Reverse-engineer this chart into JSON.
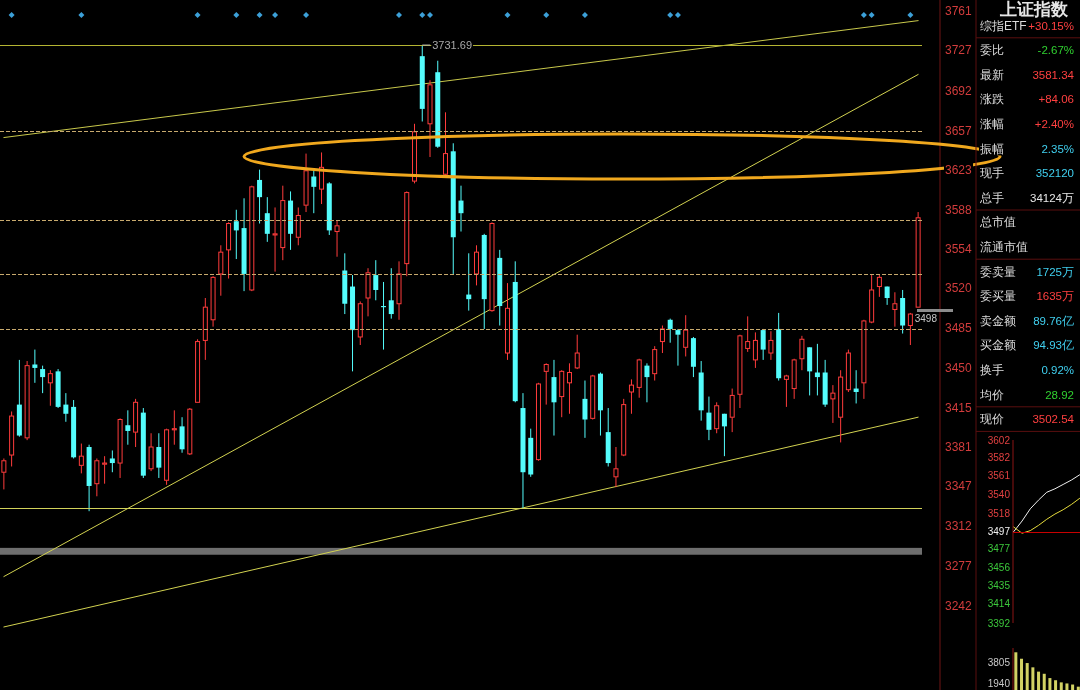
{
  "chart_data": [
    {
      "type": "candlestick",
      "categories": [
        null,
        null,
        null,
        null,
        null,
        null,
        null,
        null,
        null,
        null,
        null,
        null,
        null,
        null,
        null,
        null,
        null,
        null,
        null,
        null,
        null,
        null,
        null,
        null,
        null,
        null,
        null,
        null,
        null,
        null,
        null,
        null,
        null,
        null,
        null,
        null,
        null,
        null,
        null,
        null,
        null,
        null,
        null,
        null,
        null,
        null,
        null,
        null,
        null,
        null,
        null,
        null,
        null,
        null,
        null,
        null,
        null,
        null,
        null,
        null,
        null,
        null,
        null,
        null,
        null,
        null,
        null,
        null,
        null,
        null,
        null,
        null,
        null,
        null,
        null,
        null,
        null,
        null,
        null,
        null,
        null,
        null,
        null,
        null,
        null,
        null,
        null,
        null,
        null,
        null,
        null,
        null,
        null,
        null,
        null,
        null,
        null,
        null,
        null,
        null,
        null,
        null,
        null,
        null,
        null,
        null,
        null,
        null,
        null,
        null,
        null,
        null,
        null,
        null,
        null,
        null,
        null,
        null,
        null
      ],
      "ohlc": [
        [
          3359,
          3371,
          3344,
          3369
        ],
        [
          3374,
          3412,
          3364,
          3408
        ],
        [
          3418,
          3457,
          3390,
          3391
        ],
        [
          3389,
          3456,
          3387,
          3452
        ],
        [
          3453,
          3466,
          3437,
          3450
        ],
        [
          3449,
          3452,
          3428,
          3442
        ],
        [
          3437,
          3448,
          3417,
          3445
        ],
        [
          3447,
          3449,
          3415,
          3416
        ],
        [
          3418,
          3428,
          3403,
          3410
        ],
        [
          3416,
          3422,
          3371,
          3372
        ],
        [
          3365,
          3384,
          3358,
          3373
        ],
        [
          3381,
          3383,
          3325,
          3347
        ],
        [
          3349,
          3371,
          3338,
          3369
        ],
        [
          3366,
          3373,
          3349,
          3367
        ],
        [
          3371,
          3378,
          3359,
          3367
        ],
        [
          3367,
          3406,
          3354,
          3405
        ],
        [
          3400,
          3413,
          3383,
          3395
        ],
        [
          3394,
          3423,
          3381,
          3420
        ],
        [
          3411,
          3415,
          3354,
          3356
        ],
        [
          3362,
          3393,
          3360,
          3381
        ],
        [
          3381,
          3393,
          3354,
          3363
        ],
        [
          3352,
          3397,
          3348,
          3396
        ],
        [
          3396,
          3413,
          3383,
          3397
        ],
        [
          3399,
          3407,
          3376,
          3379
        ],
        [
          3375,
          3415,
          3374,
          3414
        ],
        [
          3420,
          3475,
          3420,
          3473
        ],
        [
          3474,
          3511,
          3457,
          3503
        ],
        [
          3492,
          3530,
          3486,
          3529
        ],
        [
          3532,
          3557,
          3513,
          3551
        ],
        [
          3553,
          3577,
          3528,
          3576
        ],
        [
          3578,
          3588,
          3545,
          3570
        ],
        [
          3572,
          3598,
          3517,
          3532
        ],
        [
          3518,
          3609,
          3517,
          3608
        ],
        [
          3614,
          3623,
          3576,
          3599
        ],
        [
          3585,
          3599,
          3560,
          3567
        ],
        [
          3566,
          3590,
          3534,
          3567
        ],
        [
          3555,
          3609,
          3544,
          3596
        ],
        [
          3596,
          3604,
          3553,
          3567
        ],
        [
          3564,
          3590,
          3557,
          3583
        ],
        [
          3592,
          3637,
          3586,
          3622
        ],
        [
          3617,
          3622,
          3585,
          3608
        ],
        [
          3606,
          3638,
          3593,
          3625
        ],
        [
          3611,
          3612,
          3566,
          3570
        ],
        [
          3569,
          3579,
          3547,
          3574
        ],
        [
          3535,
          3550,
          3497,
          3506
        ],
        [
          3521,
          3531,
          3447,
          3483
        ],
        [
          3477,
          3508,
          3470,
          3506
        ],
        [
          3511,
          3537,
          3495,
          3533
        ],
        [
          3531,
          3544,
          3509,
          3518
        ],
        [
          3504,
          3525,
          3466,
          3503
        ],
        [
          3509,
          3537,
          3493,
          3497
        ],
        [
          3506,
          3543,
          3492,
          3532
        ],
        [
          3541,
          3604,
          3530,
          3603
        ],
        [
          3613,
          3663,
          3611,
          3656
        ],
        [
          3722,
          3731.69,
          3665,
          3676
        ],
        [
          3663,
          3701,
          3634,
          3697
        ],
        [
          3708,
          3718,
          3642,
          3643
        ],
        [
          3619,
          3673,
          3618,
          3637
        ],
        [
          3639,
          3646,
          3532,
          3564
        ],
        [
          3596,
          3609,
          3569,
          3585
        ],
        [
          3514,
          3550,
          3500,
          3510
        ],
        [
          3532,
          3557,
          3522,
          3551
        ],
        [
          3566,
          3567,
          3484,
          3510
        ],
        [
          3500,
          3577,
          3499,
          3576
        ],
        [
          3546,
          3553,
          3487,
          3504
        ],
        [
          3463,
          3524,
          3457,
          3502
        ],
        [
          3525,
          3543,
          3420,
          3421
        ],
        [
          3415,
          3428,
          3327,
          3359
        ],
        [
          3389,
          3397,
          3355,
          3357
        ],
        [
          3370,
          3437,
          3369,
          3436
        ],
        [
          3447,
          3454,
          3418,
          3453
        ],
        [
          3442,
          3457,
          3391,
          3420
        ],
        [
          3425,
          3448,
          3407,
          3447
        ],
        [
          3437,
          3454,
          3410,
          3446
        ],
        [
          3450,
          3479,
          3449,
          3463
        ],
        [
          3423,
          3439,
          3389,
          3405
        ],
        [
          3406,
          3444,
          3405,
          3443
        ],
        [
          3445,
          3446,
          3391,
          3413
        ],
        [
          3394,
          3415,
          3364,
          3367
        ],
        [
          3355,
          3381,
          3346,
          3362
        ],
        [
          3374,
          3423,
          3373,
          3418
        ],
        [
          3429,
          3440,
          3410,
          3435
        ],
        [
          3433,
          3458,
          3424,
          3457
        ],
        [
          3452,
          3454,
          3420,
          3442
        ],
        [
          3445,
          3469,
          3439,
          3466
        ],
        [
          3473,
          3487,
          3463,
          3484
        ],
        [
          3492,
          3493,
          3472,
          3484
        ],
        [
          3483,
          3484,
          3452,
          3479
        ],
        [
          3468,
          3496,
          3460,
          3483
        ],
        [
          3476,
          3477,
          3442,
          3451
        ],
        [
          3446,
          3456,
          3404,
          3413
        ],
        [
          3411,
          3425,
          3387,
          3396
        ],
        [
          3397,
          3420,
          3393,
          3417
        ],
        [
          3410,
          3410,
          3373,
          3399
        ],
        [
          3407,
          3432,
          3394,
          3426
        ],
        [
          3427,
          3479,
          3415,
          3478
        ],
        [
          3467,
          3495,
          3464,
          3473
        ],
        [
          3457,
          3481,
          3450,
          3474
        ],
        [
          3483,
          3484,
          3457,
          3466
        ],
        [
          3463,
          3482,
          3457,
          3474
        ],
        [
          3484,
          3498,
          3439,
          3441
        ],
        [
          3440,
          3444,
          3416,
          3443
        ],
        [
          3432,
          3458,
          3423,
          3457
        ],
        [
          3458,
          3478,
          3448,
          3475
        ],
        [
          3468,
          3468,
          3426,
          3447
        ],
        [
          3446,
          3471,
          3426,
          3442
        ],
        [
          3446,
          3457,
          3416,
          3418
        ],
        [
          3423,
          3435,
          3402,
          3428
        ],
        [
          3407,
          3448,
          3385,
          3442
        ],
        [
          3431,
          3466,
          3429,
          3463
        ],
        [
          3432,
          3448,
          3419,
          3429
        ],
        [
          3437,
          3492,
          3423,
          3491
        ],
        [
          3490,
          3531,
          3489,
          3518
        ],
        [
          3521,
          3531,
          3512,
          3529
        ],
        [
          3521,
          3521,
          3505,
          3511
        ],
        [
          3501,
          3516,
          3486,
          3506
        ],
        [
          3511,
          3518,
          3480,
          3487
        ],
        [
          3487,
          3498,
          3470,
          3497
        ],
        [
          3503,
          3586,
          3503,
          3581
        ]
      ],
      "series": [
        {
          "type": "line",
          "color": "#c8c84b",
          "values": [
            3651,
            null,
            null,
            null,
            null,
            null,
            null,
            null,
            null,
            null,
            null,
            null,
            null,
            null,
            null,
            null,
            null,
            null,
            null,
            null,
            null,
            null,
            null,
            null,
            null,
            null,
            null,
            null,
            null,
            null,
            null,
            null,
            null,
            null,
            null,
            null,
            null,
            null,
            null,
            null,
            null,
            null,
            null,
            null,
            null,
            null,
            null,
            null,
            null,
            null,
            null,
            null,
            null,
            null,
            null,
            null,
            null,
            null,
            null,
            null,
            null,
            null,
            null,
            null,
            null,
            null,
            null,
            null,
            null,
            null,
            null,
            null,
            null,
            null,
            null,
            null,
            null,
            null,
            null,
            null,
            null,
            null,
            null,
            null,
            null,
            null,
            null,
            null,
            null,
            null,
            null,
            null,
            null,
            null,
            null,
            null,
            null,
            null,
            null,
            null,
            null,
            null,
            null,
            null,
            null,
            null,
            null,
            null,
            null,
            null,
            null,
            null,
            null,
            null,
            null,
            null,
            null,
            null,
            3753
          ]
        },
        {
          "type": "line",
          "color": "#d2d250",
          "values": [
            3268,
            null,
            null,
            null,
            null,
            null,
            null,
            null,
            null,
            null,
            null,
            null,
            null,
            null,
            null,
            null,
            null,
            null,
            null,
            null,
            null,
            null,
            null,
            null,
            null,
            null,
            null,
            null,
            null,
            null,
            null,
            null,
            null,
            null,
            null,
            null,
            null,
            null,
            null,
            null,
            null,
            null,
            null,
            null,
            null,
            null,
            null,
            null,
            null,
            null,
            null,
            null,
            null,
            null,
            null,
            null,
            null,
            null,
            null,
            null,
            null,
            null,
            null,
            null,
            null,
            null,
            null,
            null,
            null,
            null,
            null,
            null,
            null,
            null,
            null,
            null,
            null,
            null,
            null,
            null,
            null,
            null,
            null,
            null,
            null,
            null,
            null,
            null,
            null,
            null,
            null,
            null,
            null,
            null,
            null,
            null,
            null,
            null,
            null,
            null,
            null,
            null,
            null,
            null,
            null,
            null,
            null,
            null,
            null,
            null,
            null,
            null,
            null,
            null,
            null,
            null,
            null,
            null,
            3706
          ]
        },
        {
          "type": "line",
          "color": "#d2d250",
          "values": [
            3224,
            null,
            null,
            null,
            null,
            null,
            null,
            null,
            null,
            null,
            null,
            null,
            null,
            null,
            null,
            null,
            null,
            null,
            null,
            null,
            null,
            null,
            null,
            null,
            null,
            null,
            null,
            null,
            null,
            null,
            null,
            null,
            null,
            null,
            null,
            null,
            null,
            null,
            null,
            null,
            null,
            null,
            null,
            null,
            null,
            null,
            null,
            null,
            null,
            null,
            null,
            null,
            null,
            null,
            null,
            null,
            null,
            null,
            null,
            null,
            null,
            null,
            null,
            null,
            null,
            null,
            null,
            null,
            null,
            null,
            null,
            null,
            null,
            null,
            null,
            null,
            null,
            null,
            null,
            null,
            null,
            null,
            null,
            null,
            null,
            null,
            null,
            null,
            null,
            null,
            null,
            null,
            null,
            null,
            null,
            null,
            null,
            null,
            null,
            null,
            null,
            null,
            null,
            null,
            null,
            null,
            null,
            null,
            null,
            null,
            null,
            null,
            null,
            null,
            null,
            null,
            null,
            null,
            3407
          ]
        },
        {
          "type": "scatter",
          "color": "#3ca0d8",
          "marker": "diamond",
          "values": [
            null,
            3758,
            null,
            null,
            null,
            null,
            null,
            null,
            null,
            null,
            3758,
            null,
            null,
            null,
            null,
            null,
            null,
            null,
            null,
            null,
            null,
            null,
            null,
            null,
            null,
            3758,
            null,
            null,
            null,
            null,
            3758,
            null,
            null,
            3758,
            null,
            3758,
            null,
            null,
            null,
            3758,
            null,
            null,
            null,
            null,
            null,
            null,
            null,
            null,
            null,
            null,
            null,
            3758,
            null,
            null,
            3758,
            3758,
            null,
            null,
            null,
            null,
            null,
            null,
            null,
            null,
            null,
            3758,
            null,
            null,
            null,
            null,
            3758,
            null,
            null,
            null,
            null,
            3758,
            null,
            null,
            null,
            null,
            null,
            null,
            null,
            null,
            null,
            null,
            3758,
            3758,
            null,
            null,
            null,
            null,
            null,
            null,
            null,
            null,
            null,
            null,
            null,
            null,
            null,
            null,
            null,
            null,
            null,
            null,
            null,
            null,
            null,
            null,
            null,
            3758,
            3758,
            null,
            null,
            null,
            null,
            3758,
            null
          ]
        }
      ],
      "ylim": [
        3169,
        3771
      ],
      "yticks": [
        3242,
        3277,
        3312,
        3347,
        3381,
        3415,
        3450,
        3485,
        3520,
        3554,
        3588,
        3623,
        3657,
        3692,
        3727,
        3761
      ],
      "tick_labels": "y",
      "ref_lines": [
        {
          "axis": "y",
          "value": 3731.69,
          "color": "#b4b432",
          "line_style": "solid"
        },
        {
          "axis": "y",
          "value": 3328,
          "color": "#d2d25a",
          "line_style": "solid"
        },
        {
          "axis": "y",
          "value": 3579,
          "color": "#c8aa6e",
          "line_style": "dashed"
        },
        {
          "axis": "y",
          "value": 3532,
          "color": "#c8aa6e",
          "line_style": "dashed"
        },
        {
          "axis": "y",
          "value": 3657,
          "color": "#c8aa6e",
          "line_style": "dashed"
        },
        {
          "axis": "y",
          "value": 3484,
          "color": "#c8aa6e",
          "line_style": "dashed"
        }
      ],
      "bands": [
        {
          "axis": "y",
          "from": 3287,
          "to": 3293,
          "color": "#6e6e6e"
        }
      ],
      "annotations": [
        {
          "text": "3731.69",
          "y": 3731.69
        },
        "3498"
      ]
    },
    {
      "type": "other",
      "title": "上证指数",
      "categories": [
        "综指ETF",
        "委比",
        "最新",
        "涨跌",
        "涨幅",
        "振幅",
        "现手",
        "总手",
        "总市值",
        "流通市值",
        "委卖量",
        "委买量",
        "卖金额",
        "买金额",
        "换手",
        "均价",
        "现价"
      ],
      "value_labels": [
        "+30.15%",
        "-2.67%",
        "3581.34",
        "+84.06",
        "+2.40%",
        "2.35%",
        "352120",
        "34124万",
        null,
        null,
        "1725万",
        "1635万",
        "89.76亿",
        "94.93亿",
        "0.92%",
        "28.92",
        "3502.54"
      ],
      "colors": [
        "#ff4040",
        "#30d030",
        "#ff4040",
        "#ff4040",
        "#ff4040",
        "#40d0f0",
        "#40d0f0",
        "#e8e8e8",
        null,
        null,
        "#40d0f0",
        "#ff4040",
        "#40d0f0",
        "#40d0f0",
        "#40d0f0",
        "#30d030",
        "#ff4040"
      ]
    },
    {
      "type": "line",
      "categories": [
        null,
        null,
        null,
        null,
        null,
        null,
        null,
        null,
        null
      ],
      "series": [
        {
          "color": "#f0f0f0",
          "values": [
            3497,
            3509,
            3523,
            3533,
            3542,
            3546,
            3551,
            3556,
            3562
          ]
        },
        {
          "color": "#e6dc3c",
          "values": [
            3502,
            3495,
            3498,
            3504,
            3511,
            3517,
            3522,
            3528,
            3535
          ]
        }
      ],
      "ylim": [
        3392,
        3602
      ],
      "yticks": [
        3392,
        3414,
        3435,
        3456,
        3477,
        3497,
        3518,
        3540,
        3561,
        3582,
        3602
      ],
      "tick_labels": "y",
      "ref_lines": [
        {
          "axis": "y",
          "value": 3497,
          "color": "#c80000"
        }
      ]
    },
    {
      "type": "bar",
      "categories": [
        null,
        null,
        null,
        null,
        null,
        null,
        null,
        null,
        null,
        null,
        null,
        null
      ],
      "series": [
        {
          "color": "#d2d264",
          "values": [
            4800,
            4200,
            3800,
            3400,
            3000,
            2800,
            2400,
            2200,
            2000,
            1900,
            1800,
            1600
          ]
        }
      ],
      "ylim": [
        1290,
        5200
      ],
      "yticks": [
        1940,
        3805
      ],
      "tick_labels": "y"
    }
  ]
}
